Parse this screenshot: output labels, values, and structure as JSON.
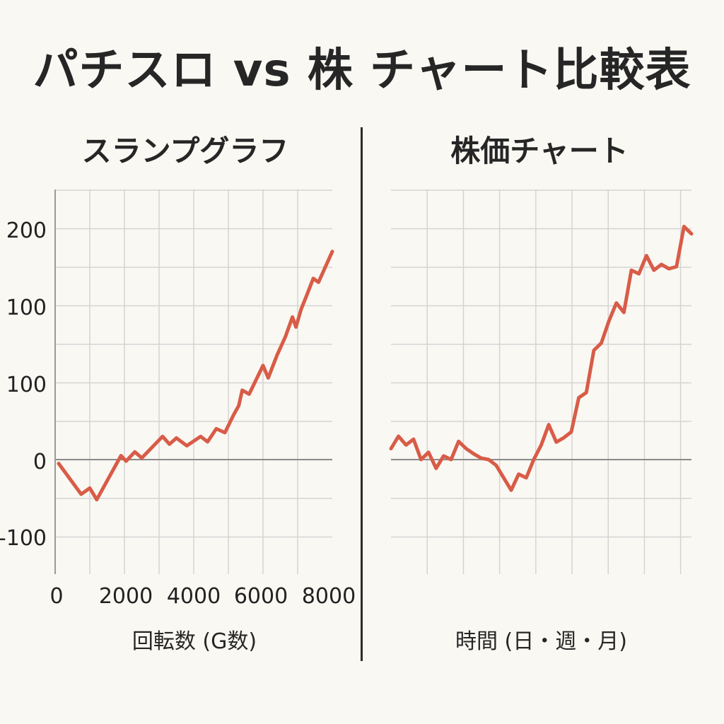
{
  "title": "パチスロ vs 株 チャート比較表",
  "colors": {
    "line": "#d85c47",
    "grid": "#d4d4d4",
    "zero": "#8c8c8c",
    "axis": "#9a9a9a",
    "text": "#222222",
    "background": "#faf8f3"
  },
  "chart_data": [
    {
      "type": "line",
      "title": "スランプグラフ",
      "xlabel": "回転数 (G数)",
      "ylabel": "",
      "x_ticks": [
        "0",
        "2000",
        "4000",
        "6000",
        "8000"
      ],
      "y_ticks": [
        "200",
        "100",
        "100",
        "0",
        "-100"
      ],
      "grid": true,
      "series": [
        {
          "x": [
            100,
            750,
            1000,
            1200,
            1900,
            2050,
            2300,
            2500,
            3100,
            3300,
            3500,
            3800,
            4200,
            4400,
            4650,
            4900,
            5150,
            5300,
            5400,
            5600,
            6000,
            6150,
            6400,
            6650,
            6850,
            6950,
            7100,
            7250,
            7450,
            7600,
            8000
          ],
          "y": [
            -5,
            -45,
            -37,
            -52,
            5,
            -2,
            10,
            2,
            30,
            20,
            28,
            18,
            30,
            23,
            40,
            35,
            58,
            70,
            90,
            85,
            122,
            106,
            135,
            160,
            185,
            172,
            195,
            212,
            235,
            230,
            270
          ]
        }
      ]
    },
    {
      "type": "line",
      "title": "株価チャート",
      "xlabel": "時間 (日・週・月)",
      "ylabel": "",
      "x_ticks": [],
      "y_ticks": [],
      "grid": true,
      "series": [
        {
          "x": [
            0,
            1,
            2,
            3,
            4,
            5,
            6,
            7,
            8,
            9,
            10,
            11,
            12,
            13,
            14,
            15,
            16,
            17,
            18,
            19,
            20,
            21,
            22,
            23,
            24,
            25,
            26,
            27,
            28,
            29,
            30,
            31,
            32,
            33,
            34,
            35,
            36,
            37,
            38,
            39,
            40
          ],
          "y": [
            15,
            32,
            20,
            28,
            0,
            10,
            -12,
            5,
            0,
            25,
            15,
            8,
            2,
            0,
            -8,
            -25,
            -42,
            -20,
            -25,
            0,
            20,
            48,
            24,
            30,
            38,
            85,
            92,
            150,
            160,
            190,
            215,
            202,
            260,
            255,
            280,
            260,
            268,
            262,
            265,
            320,
            310
          ]
        }
      ]
    }
  ]
}
